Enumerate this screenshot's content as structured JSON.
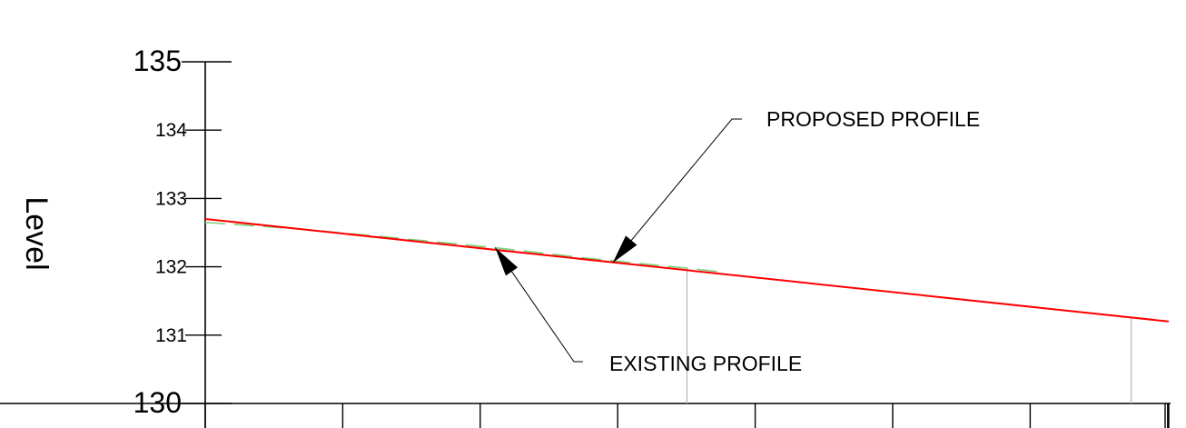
{
  "chart_data": {
    "type": "line",
    "title": "",
    "xlabel": "",
    "ylabel": "Level",
    "ylim": [
      130,
      135
    ],
    "y_ticks": [
      {
        "value": 135,
        "label": "135",
        "major": true
      },
      {
        "value": 134,
        "label": "134",
        "major": false
      },
      {
        "value": 133,
        "label": "133",
        "major": false
      },
      {
        "value": 132,
        "label": "132",
        "major": false
      },
      {
        "value": 131,
        "label": "131",
        "major": false
      },
      {
        "value": 130,
        "label": "130",
        "major": true
      }
    ],
    "x_tick_count": 8,
    "grid": false,
    "series": [
      {
        "key": "proposed",
        "color": "#ff0000",
        "dash": "solid",
        "x": [
          0,
          1
        ],
        "y": [
          132.7,
          131.2
        ]
      },
      {
        "key": "existing",
        "color": "#7ed07e",
        "dash": "dashed",
        "x": [
          0,
          0.1,
          0.2,
          0.3,
          0.4,
          0.5,
          0.538
        ],
        "y": [
          132.65,
          132.55,
          132.42,
          132.28,
          132.12,
          131.98,
          131.92
        ]
      }
    ],
    "verticals": [
      {
        "x": 0.5,
        "y_top": 131.97
      },
      {
        "x": 0.961,
        "y_top": 131.26
      }
    ],
    "annotations": [
      {
        "key": "proposed",
        "text": "PROPOSED PROFILE",
        "arrow_x": 0.423,
        "arrow_y": 132.06
      },
      {
        "key": "existing",
        "text": "EXISTING PROFILE",
        "arrow_x": 0.301,
        "arrow_y": 132.28
      }
    ]
  }
}
